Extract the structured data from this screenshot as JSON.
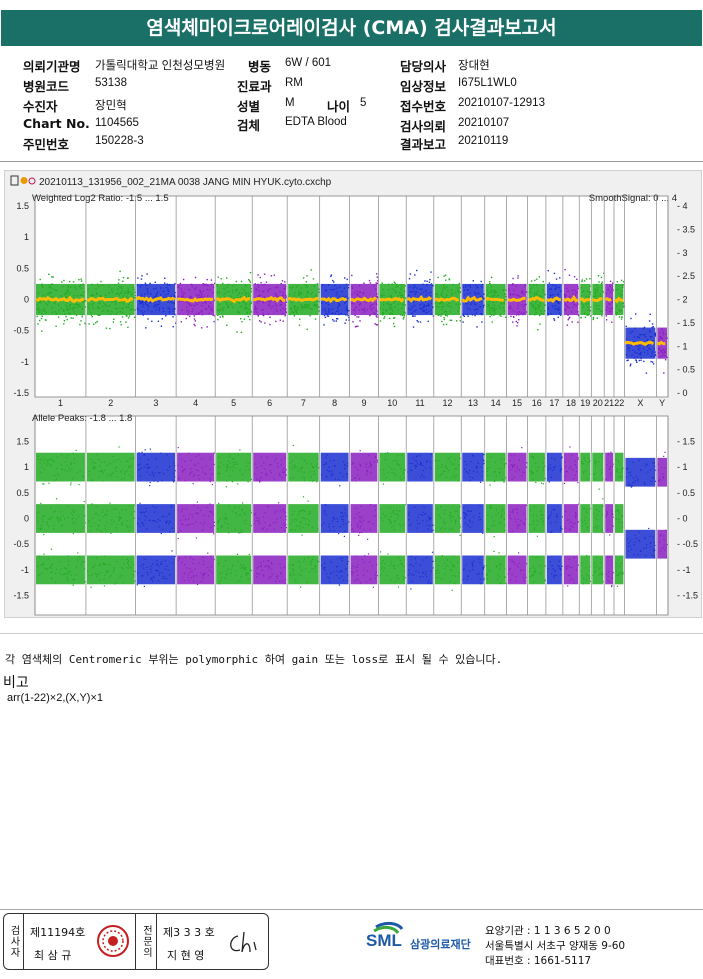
{
  "header": {
    "title": "염색체마이크로어레이검사 (CMA) 검사결과보고서"
  },
  "patient_info": {
    "institution_label": "의뢰기관명",
    "institution_value": "가톨릭대학교 인천성모병원",
    "ward_label": "병동",
    "ward_value": "6W / 601",
    "doctor_label": "담당의사",
    "doctor_value": "장대현",
    "hospital_code_label": "병원코드",
    "hospital_code_value": "53138",
    "department_label": "진료과",
    "department_value": "RM",
    "clinical_info_label": "임상정보",
    "clinical_info_value": "I675L1WL0",
    "receiver_label": "수진자",
    "receiver_value": "장민혁",
    "sex_label": "성별",
    "sex_value": "M",
    "age_label": "나이",
    "age_value": "5",
    "receipt_no_label": "접수번호",
    "receipt_no_value": "20210107-12913",
    "chart_no_label": "Chart No.",
    "chart_no_value": "1104565",
    "specimen_label": "검체",
    "specimen_value": "EDTA Blood",
    "request_label": "검사의뢰",
    "request_value": "20210107",
    "resident_no_label": "주민번호",
    "resident_no_value": "150228-3",
    "report_label": "결과보고",
    "report_value": "20210119"
  },
  "plot": {
    "file_name": "20210113_131956_002_21MA 0038 JANG MIN HYUK.cyto.cxchp",
    "top_panel_title": "Weighted Log2 Ratio: -1.5 ... 1.5",
    "top_panel_right_title": "SmoothSignal: 0 ... 4",
    "bottom_panel_title": "Allele Peaks: -1.8 ... 1.8",
    "top_left_ticks": [
      "1.5",
      "1",
      "0.5",
      "0",
      "-0.5",
      "-1",
      "-1.5"
    ],
    "top_right_ticks": [
      "4",
      "3.5",
      "3",
      "2.5",
      "2",
      "1.5",
      "1",
      "0.5",
      "0"
    ],
    "bottom_left_ticks": [
      "1.5",
      "1",
      "0.5",
      "0",
      "-0.5",
      "-1",
      "-1.5"
    ],
    "bottom_right_ticks": [
      "1.5",
      "1",
      "0.5",
      "0",
      "-0.5",
      "-1",
      "-1.5"
    ],
    "chromosomes": [
      "1",
      "2",
      "3",
      "4",
      "5",
      "6",
      "7",
      "8",
      "9",
      "10",
      "11",
      "12",
      "13",
      "14",
      "15",
      "16",
      "17",
      "18",
      "19",
      "20",
      "21",
      "22",
      "X",
      "Y"
    ],
    "colors": {
      "green": "#22aa22",
      "blue": "#1a2fd0",
      "purple": "#8a1fc0",
      "smooth": "#ffbb00"
    }
  },
  "note_text": "각 염색체의 Centromeric 부위는 polymorphic 하여 gain 또는 loss로 표시 될 수 있습니다.",
  "remarks_label": "비고",
  "karyotype": "arr(1-22)×2,(X,Y)×1",
  "signatures": {
    "inspector_label": "검사자",
    "inspector_license": "제11194호",
    "inspector_name": "최 삼 규",
    "specialist_label": "전문의",
    "specialist_license": "제3 3 3 호",
    "specialist_name": "지 현 영"
  },
  "footer": {
    "logo_text": "SML",
    "logo_name": "삼광의료재단",
    "institution_code": "요양기관 : 1 1 3 6 5 2 0 0",
    "address": "서울특별시 서초구 양재동 9-60",
    "phone": "대표번호 : 1661-5117"
  }
}
